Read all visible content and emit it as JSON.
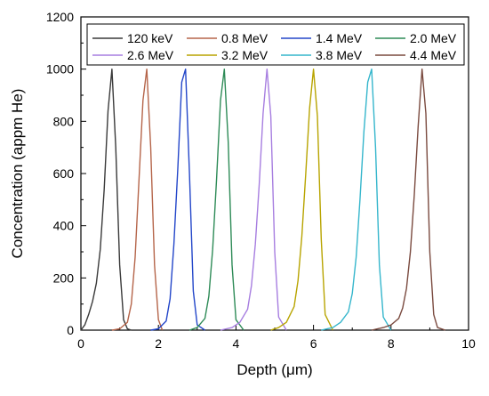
{
  "chart_data": {
    "type": "line",
    "title": "",
    "xlabel": "Depth (μm)",
    "ylabel": "Concentration (appm He)",
    "xlim": [
      0,
      10
    ],
    "ylim": [
      0,
      1200
    ],
    "x_ticks": [
      0,
      2,
      4,
      6,
      8,
      10
    ],
    "y_ticks": [
      0,
      200,
      400,
      600,
      800,
      1000,
      1200
    ],
    "grid": false,
    "legend_position": "top",
    "series": [
      {
        "name": "120 keV",
        "color": "#3a3a3a",
        "x": [
          0.0,
          0.1,
          0.2,
          0.3,
          0.4,
          0.5,
          0.6,
          0.7,
          0.8,
          0.9,
          1.0,
          1.1,
          1.2,
          1.3
        ],
        "y": [
          0,
          20,
          60,
          110,
          180,
          310,
          540,
          840,
          1000,
          700,
          250,
          40,
          5,
          0
        ]
      },
      {
        "name": "0.8 MeV",
        "color": "#b5654a",
        "x": [
          0.8,
          1.0,
          1.2,
          1.3,
          1.4,
          1.5,
          1.6,
          1.7,
          1.8,
          1.9,
          2.0,
          2.1
        ],
        "y": [
          0,
          5,
          30,
          100,
          280,
          580,
          880,
          1000,
          700,
          250,
          40,
          0
        ]
      },
      {
        "name": "1.4 MeV",
        "color": "#2346c9",
        "x": [
          1.8,
          2.0,
          2.2,
          2.3,
          2.4,
          2.5,
          2.6,
          2.7,
          2.8,
          2.9,
          3.0,
          3.2
        ],
        "y": [
          0,
          5,
          35,
          120,
          330,
          620,
          950,
          1000,
          600,
          150,
          20,
          0
        ]
      },
      {
        "name": "2.0 MeV",
        "color": "#2e8b57",
        "x": [
          2.8,
          3.0,
          3.2,
          3.3,
          3.4,
          3.5,
          3.6,
          3.7,
          3.8,
          3.9,
          4.0,
          4.2
        ],
        "y": [
          0,
          10,
          45,
          130,
          310,
          580,
          880,
          1000,
          720,
          250,
          40,
          0
        ]
      },
      {
        "name": "2.6 MeV",
        "color": "#a77ee0",
        "x": [
          3.6,
          3.9,
          4.1,
          4.3,
          4.4,
          4.5,
          4.6,
          4.7,
          4.8,
          4.9,
          5.0,
          5.1,
          5.3
        ],
        "y": [
          0,
          10,
          30,
          80,
          170,
          330,
          560,
          830,
          1000,
          820,
          300,
          50,
          0
        ]
      },
      {
        "name": "3.2 MeV",
        "color": "#b8a400",
        "x": [
          4.9,
          5.1,
          5.3,
          5.5,
          5.6,
          5.7,
          5.8,
          5.9,
          6.0,
          6.1,
          6.2,
          6.3,
          6.5
        ],
        "y": [
          0,
          10,
          30,
          90,
          190,
          360,
          600,
          850,
          1000,
          820,
          350,
          60,
          0
        ]
      },
      {
        "name": "3.8 MeV",
        "color": "#35b6cc",
        "x": [
          6.2,
          6.5,
          6.7,
          6.9,
          7.0,
          7.1,
          7.2,
          7.3,
          7.4,
          7.5,
          7.6,
          7.7,
          7.8,
          8.0
        ],
        "y": [
          0,
          10,
          30,
          70,
          140,
          280,
          500,
          760,
          950,
          1000,
          700,
          250,
          50,
          0
        ]
      },
      {
        "name": "4.4 MeV",
        "color": "#7a4a3f",
        "x": [
          7.5,
          7.8,
          8.0,
          8.2,
          8.3,
          8.4,
          8.5,
          8.6,
          8.7,
          8.8,
          8.9,
          9.0,
          9.1,
          9.2,
          9.4
        ],
        "y": [
          0,
          10,
          20,
          45,
          85,
          160,
          300,
          520,
          780,
          1000,
          830,
          300,
          60,
          10,
          0
        ]
      }
    ]
  }
}
